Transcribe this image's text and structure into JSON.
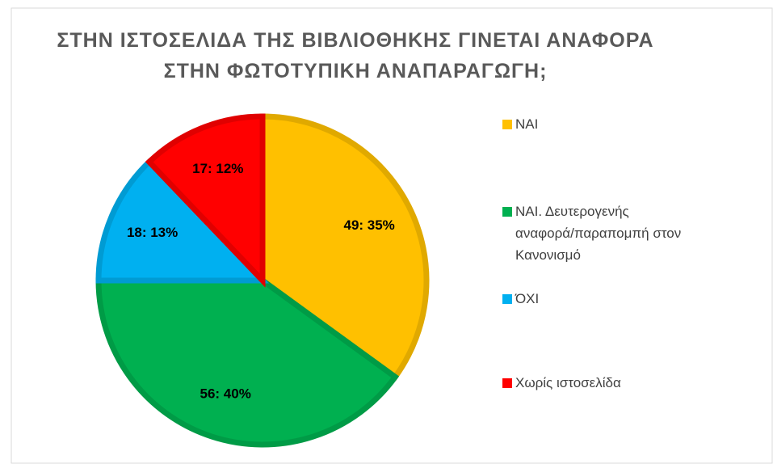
{
  "chart_data": {
    "type": "pie",
    "title": [
      "ΣΤΗΝ ΙΣΤΟΣΕΛΙΔΑ ΤΗΣ ΒΙΒΛΙΟΘΗΚΗΣ ΓΙΝΕΤΑΙ ΑΝΑΦΟΡΑ",
      "ΣΤΗΝ ΦΩΤΟΤΥΠΙΚΗ ΑΝΑΠΑΡΑΓΩΓΗ;"
    ],
    "categories": [
      "ΝΑΙ",
      "ΝΑΙ. Δευτερογενής αναφορά/παραπομπή στον Κανονισμό",
      "ΌΧΙ",
      "Χωρίς ιστοσελίδα"
    ],
    "values": [
      49,
      56,
      18,
      17
    ],
    "value_labels": [
      "49: 35%",
      "56: 40%",
      "18: 13%",
      "17: 12%"
    ],
    "colors": [
      "#FFC000",
      "#00B050",
      "#00B0F0",
      "#FF0000"
    ],
    "legend": "right"
  }
}
